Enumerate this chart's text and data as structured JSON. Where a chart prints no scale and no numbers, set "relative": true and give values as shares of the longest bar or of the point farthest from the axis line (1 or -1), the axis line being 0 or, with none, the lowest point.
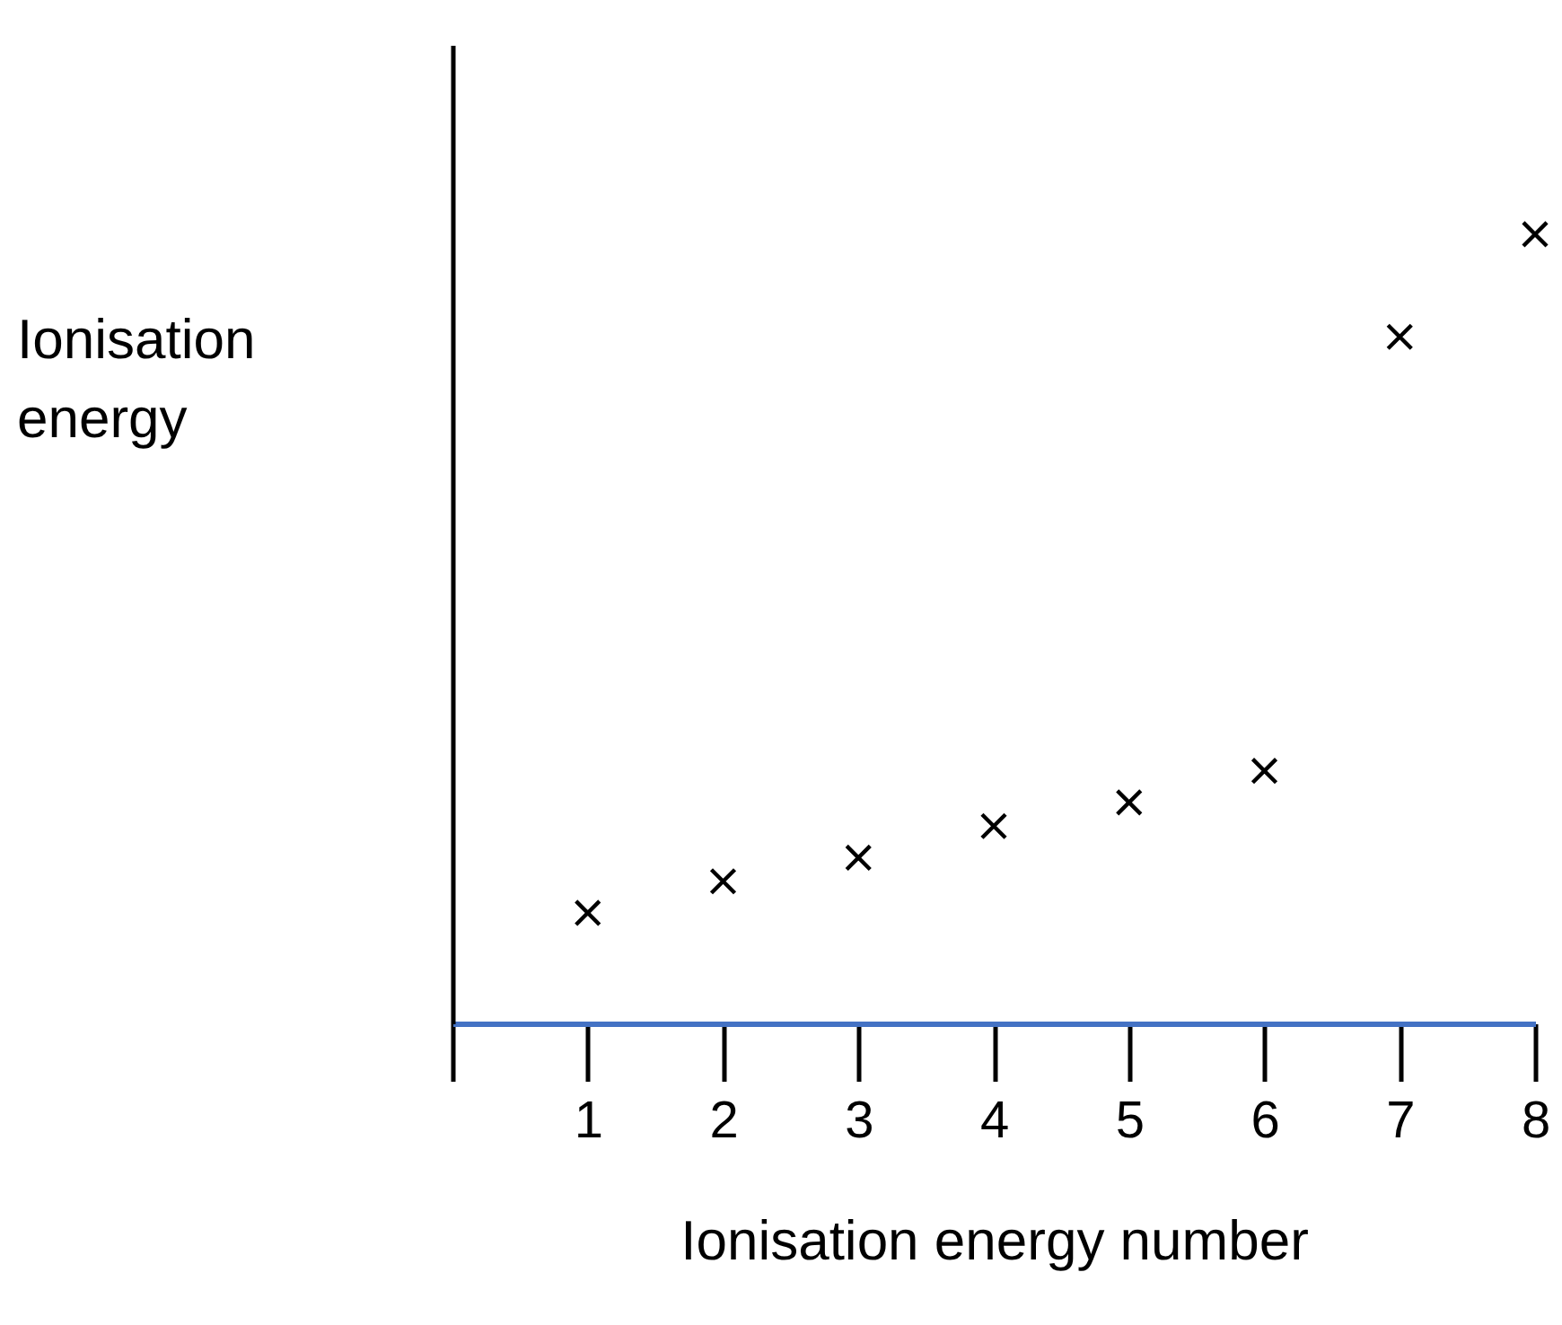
{
  "chart_data": {
    "type": "scatter",
    "xlabel": "Ionisation energy number",
    "ylabel": "Ionisation energy",
    "relative": true,
    "x": [
      1,
      2,
      3,
      4,
      5,
      6,
      7,
      8
    ],
    "series": [
      {
        "color": "#000000",
        "values": [
          0.14,
          0.18,
          0.21,
          0.25,
          0.28,
          0.32,
          0.87,
          1.0
        ]
      }
    ],
    "xlim": [
      0,
      8
    ],
    "xticks": [
      {
        "value": 0,
        "label": null
      },
      1,
      2,
      3,
      4,
      5,
      6,
      7,
      8
    ],
    "marker": "cross",
    "grid": false
  }
}
